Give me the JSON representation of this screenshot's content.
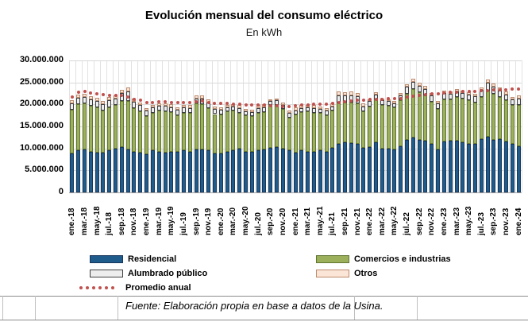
{
  "source_note": "Fuente: Elaboración propia en base a datos de la Usina.",
  "chart_data": {
    "type": "bar",
    "stacked": true,
    "title": "Evolución mensual del consumo eléctrico",
    "subtitle": "En kWh",
    "xlabel": "",
    "ylabel": "",
    "ylim": [
      0,
      30000000
    ],
    "ytick_step": 5000000,
    "ytick_labels": [
      "0",
      "5.000.000",
      "10.000.000",
      "15.000.000",
      "20.000.000",
      "25.000.000",
      "30.000.000"
    ],
    "grid": true,
    "legend_position": "bottom",
    "x_labels_shown_every": 2,
    "categories": [
      "ene.-18",
      "feb.-18",
      "mar.-18",
      "abr.-18",
      "may.-18",
      "jun.-18",
      "jul.-18",
      "ago.-18",
      "sep.-18",
      "oct.-18",
      "nov.-18",
      "dic.-18",
      "ene.-19",
      "feb.-19",
      "mar.-19",
      "abr.-19",
      "may.-19",
      "jun.-19",
      "jul.-19",
      "ago.-19",
      "sep.-19",
      "oct.-19",
      "nov.-19",
      "dic.-19",
      "ene.-20",
      "feb.-20",
      "mar.-20",
      "abr.-20",
      "may.-20",
      "jun.-20",
      "jul.-20",
      "ago.-20",
      "sep.-20",
      "oct.-20",
      "nov.-20",
      "dic.-20",
      "ene.-21",
      "feb.-21",
      "mar.-21",
      "abr.-21",
      "may.-21",
      "jun.-21",
      "jul.-21",
      "ago.-21",
      "sep.-21",
      "oct.-21",
      "nov.-21",
      "dic.-21",
      "ene.-22",
      "feb.-22",
      "mar.-22",
      "abr.-22",
      "may.-22",
      "jun.-22",
      "jul.-22",
      "ago.-22",
      "sep.-22",
      "oct.-22",
      "nov.-22",
      "dic.-22",
      "ene.-23",
      "feb.-23",
      "mar.-23",
      "abr.-23",
      "may.-23",
      "jun.-23",
      "jul.-23",
      "ago.-23",
      "sep.-23",
      "oct.-23",
      "nov.-23",
      "dic.-23",
      "ene.-24"
    ],
    "series": [
      {
        "name": "Residencial",
        "type": "bar",
        "color": "#1f5c8b",
        "border": "#17375d",
        "values": [
          8800000,
          9600000,
          9800000,
          9300000,
          9100000,
          9000000,
          9500000,
          9900000,
          10300000,
          9800000,
          9200000,
          9100000,
          8700000,
          9600000,
          9300000,
          9000000,
          9300000,
          9200000,
          9500000,
          9300000,
          9800000,
          9700000,
          9600000,
          8900000,
          8900000,
          9200000,
          9600000,
          9900000,
          9200000,
          9300000,
          9600000,
          9800000,
          10100000,
          10300000,
          9900000,
          9500000,
          9000000,
          9600000,
          9300000,
          9300000,
          9500000,
          9300000,
          10200000,
          11000000,
          11400000,
          11200000,
          11000000,
          10200000,
          10300000,
          11300000,
          10000000,
          9900000,
          9700000,
          10400000,
          12000000,
          12400000,
          12000000,
          11700000,
          11000000,
          9700000,
          11500000,
          11700000,
          11800000,
          11400000,
          11100000,
          11000000,
          12100000,
          12600000,
          11900000,
          12100000,
          11600000,
          11000000,
          10500000
        ]
      },
      {
        "name": "Comercios e industrias",
        "type": "bar",
        "color": "#9cb05b",
        "border": "#5f7530",
        "values": [
          10000000,
          10400000,
          10400000,
          10400000,
          10300000,
          9600000,
          9900000,
          10000000,
          10500000,
          11000000,
          9900000,
          9400000,
          8700000,
          8500000,
          9400000,
          9500000,
          9000000,
          8400000,
          8600000,
          8700000,
          10500000,
          10400000,
          9600000,
          8900000,
          8800000,
          9200000,
          9000000,
          8200000,
          8300000,
          8000000,
          8500000,
          8500000,
          9700000,
          9600000,
          9000000,
          7500000,
          8700000,
          8600000,
          9100000,
          8800000,
          8500000,
          8200000,
          8500000,
          9400000,
          9000000,
          9300000,
          9200000,
          8300000,
          9300000,
          9900000,
          9900000,
          9800000,
          9600000,
          10500000,
          10400000,
          11100000,
          10800000,
          10400000,
          9600000,
          9300000,
          9700000,
          9400000,
          9800000,
          9900000,
          9800000,
          9500000,
          9600000,
          10500000,
          10500000,
          9500000,
          9300000,
          8800000,
          9400000
        ]
      },
      {
        "name": "Alumbrado público",
        "type": "bar",
        "color": "#ededed",
        "border": "#3f3f3f",
        "values": [
          1400000,
          1500000,
          1500000,
          1500000,
          1400000,
          1400000,
          1500000,
          1500000,
          1800000,
          2200000,
          1500000,
          1400000,
          1200000,
          1200000,
          1000000,
          1200000,
          1100000,
          1200000,
          1200000,
          1200000,
          1100000,
          1300000,
          1300000,
          1100000,
          1100000,
          1000000,
          1000000,
          1100000,
          1000000,
          1000000,
          1100000,
          1100000,
          900000,
          1000000,
          1000000,
          1100000,
          1000000,
          1000000,
          900000,
          1100000,
          1000000,
          1100000,
          900000,
          1700000,
          1600000,
          1600000,
          1600000,
          1100000,
          1100000,
          1000000,
          1000000,
          1000000,
          1000000,
          1200000,
          1600000,
          1700000,
          1500000,
          1400000,
          1400000,
          1200000,
          1400000,
          1300000,
          1300000,
          1300000,
          1300000,
          1300000,
          1600000,
          1800000,
          1600000,
          1500000,
          1400000,
          1300000,
          1500000
        ]
      },
      {
        "name": "Otros",
        "type": "bar",
        "color": "#fbe5d6",
        "border": "#bb8a6d",
        "values": [
          700000,
          800000,
          700000,
          700000,
          700000,
          700000,
          700000,
          700000,
          800000,
          900000,
          700000,
          600000,
          600000,
          600000,
          600000,
          600000,
          600000,
          600000,
          600000,
          600000,
          600000,
          700000,
          600000,
          600000,
          600000,
          500000,
          500000,
          600000,
          500000,
          500000,
          600000,
          600000,
          500000,
          500000,
          600000,
          600000,
          600000,
          600000,
          600000,
          600000,
          600000,
          600000,
          600000,
          800000,
          800000,
          800000,
          800000,
          600000,
          500000,
          600000,
          500000,
          500000,
          500000,
          500000,
          600000,
          700000,
          700000,
          700000,
          600000,
          600000,
          600000,
          600000,
          600000,
          600000,
          600000,
          600000,
          600000,
          800000,
          700000,
          700000,
          600000,
          600000,
          700000
        ]
      },
      {
        "name": "Promedio anual",
        "type": "dots",
        "color": "#c0504d",
        "values": [
          21700000,
          22800000,
          23000000,
          22600000,
          22400000,
          22200000,
          22100000,
          22100000,
          22000000,
          21600000,
          21100000,
          20900000,
          20400000,
          20500000,
          20600000,
          20600000,
          20500000,
          20400000,
          20500000,
          20400000,
          20600000,
          20700000,
          20500000,
          20300000,
          20200000,
          20200000,
          20100000,
          20000000,
          19900000,
          19800000,
          19800000,
          19800000,
          19700000,
          19700000,
          19600000,
          19600000,
          19700000,
          19800000,
          19900000,
          20000000,
          20100000,
          20100000,
          20200000,
          20400000,
          20600000,
          20800000,
          21000000,
          21000000,
          21100000,
          21200000,
          21200000,
          21300000,
          21300000,
          21400000,
          21600000,
          21900000,
          22100000,
          22300000,
          22400000,
          22500000,
          22600000,
          22700000,
          22800000,
          22900000,
          23000000,
          23000000,
          23100000,
          23200000,
          23300000,
          23400000,
          23400000,
          23500000,
          23500000
        ]
      }
    ]
  },
  "footer": {
    "cell_borders_x": [
      3,
      44,
      148,
      446,
      525
    ]
  }
}
